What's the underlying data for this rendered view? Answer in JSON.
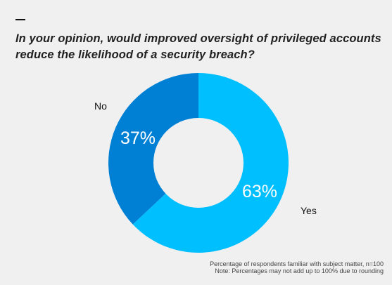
{
  "title": "In your opinion, would improved oversight of privileged accounts reduce the likelihood of a security breach?",
  "chart_data": {
    "type": "pie",
    "title": "In your opinion, would improved oversight of privileged accounts reduce the likelihood of a security breach?",
    "slices": [
      {
        "label": "Yes",
        "value": 63,
        "value_label": "63%",
        "color": "#00bfff"
      },
      {
        "label": "No",
        "value": 37,
        "value_label": "37%",
        "color": "#0080d4"
      }
    ],
    "hole": "donut",
    "legend": "direct labels"
  },
  "footnotes": {
    "line1": "Percentage of respondents familiar with subject matter, n=100",
    "line2": "Note: Percentages may not add up to 100% due to rounding"
  }
}
